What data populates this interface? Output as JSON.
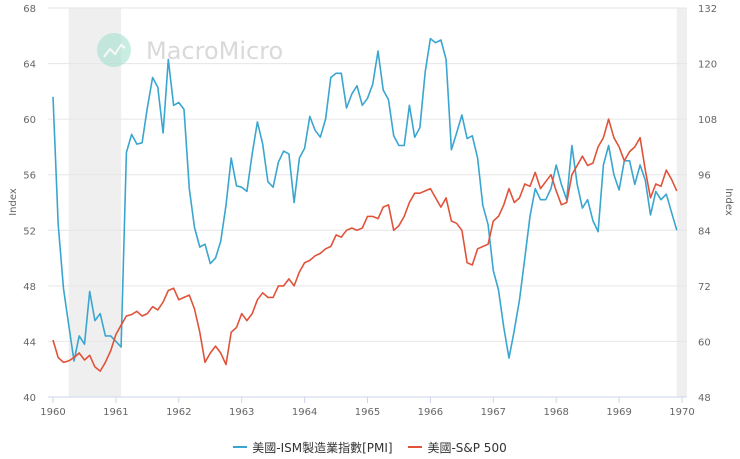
{
  "watermark": "MacroMicro",
  "chart_data": {
    "type": "line",
    "start": "1960-01",
    "frequency": "monthly",
    "x_ticks": [
      "1960",
      "1961",
      "1962",
      "1963",
      "1964",
      "1965",
      "1966",
      "1967",
      "1968",
      "1969",
      "1970"
    ],
    "y_left": {
      "label": "Index",
      "range": [
        40,
        68
      ],
      "ticks": [
        40,
        44,
        48,
        52,
        56,
        60,
        64,
        68
      ]
    },
    "y_right": {
      "label": "Index",
      "range": [
        48,
        132
      ],
      "ticks": [
        48,
        60,
        72,
        84,
        96,
        108,
        120,
        132
      ]
    },
    "grid": true,
    "legend_placement": "bottom",
    "recessions": [
      [
        "1960-04",
        "1961-02"
      ],
      [
        "1969-12",
        "1970-02"
      ]
    ],
    "series": [
      {
        "name": "美國-ISM製造業指數[PMI]",
        "axis": "left",
        "color": "#3aa6d0",
        "values": [
          61.6,
          52.4,
          47.8,
          45.2,
          42.6,
          44.4,
          43.8,
          47.6,
          45.5,
          46.0,
          44.4,
          44.4,
          44.0,
          43.6,
          57.6,
          58.9,
          58.2,
          58.3,
          60.8,
          63.0,
          62.3,
          59.0,
          64.3,
          61.0,
          61.2,
          60.7,
          55.0,
          52.2,
          50.8,
          51.0,
          49.6,
          50.0,
          51.2,
          53.8,
          57.2,
          55.2,
          55.1,
          54.8,
          57.5,
          59.8,
          58.2,
          55.5,
          55.1,
          56.9,
          57.7,
          57.5,
          54.0,
          57.2,
          57.9,
          60.2,
          59.2,
          58.7,
          60.0,
          63.0,
          63.3,
          63.3,
          60.8,
          61.8,
          62.4,
          61.0,
          61.5,
          62.5,
          64.9,
          62.1,
          61.4,
          58.8,
          58.1,
          58.1,
          61.0,
          58.7,
          59.4,
          63.4,
          65.8,
          65.5,
          65.7,
          64.3,
          57.8,
          59.0,
          60.3,
          58.6,
          58.8,
          57.2,
          53.8,
          52.4,
          49.1,
          47.7,
          45.0,
          42.8,
          44.8,
          47.0,
          50.0,
          53.0,
          55.0,
          54.2,
          54.2,
          55.0,
          56.7,
          55.3,
          54.2,
          58.1,
          55.3,
          53.6,
          54.2,
          52.7,
          51.9,
          56.7,
          58.1,
          56.0,
          54.9,
          57.0,
          57.0,
          55.3,
          56.7,
          55.6,
          53.1,
          54.8,
          54.2,
          54.6,
          53.3,
          52.0
        ]
      },
      {
        "name": "美國-S&P 500",
        "axis": "right",
        "color": "#e0533a",
        "values": [
          60.3,
          56.5,
          55.5,
          55.8,
          56.5,
          57.5,
          56.0,
          57.0,
          54.5,
          53.6,
          55.5,
          58.0,
          61.5,
          63.5,
          65.5,
          65.8,
          66.5,
          65.5,
          66.0,
          67.5,
          66.8,
          68.5,
          71.0,
          71.5,
          69.0,
          69.5,
          70.0,
          67.0,
          62.0,
          55.5,
          57.5,
          59.0,
          57.5,
          55.0,
          62.0,
          63.0,
          66.0,
          64.5,
          66.0,
          69.0,
          70.5,
          69.5,
          69.5,
          72.0,
          72.0,
          73.5,
          72.0,
          75.0,
          77.0,
          77.5,
          78.5,
          79.0,
          80.0,
          80.5,
          83.0,
          82.5,
          84.0,
          84.5,
          84.0,
          84.5,
          87.0,
          87.0,
          86.5,
          89.0,
          89.5,
          84.0,
          85.0,
          87.0,
          90.0,
          92.0,
          92.0,
          92.5,
          93.0,
          91.0,
          89.0,
          91.0,
          86.0,
          85.5,
          84.0,
          77.0,
          76.5,
          80.0,
          80.5,
          81.0,
          86.0,
          87.0,
          89.5,
          93.0,
          90.0,
          91.0,
          94.0,
          93.5,
          96.5,
          93.0,
          94.5,
          96.0,
          92.5,
          89.5,
          90.0,
          96.0,
          98.0,
          100.0,
          98.0,
          98.5,
          102.0,
          104.0,
          108.0,
          104.0,
          102.0,
          99.0,
          101.0,
          102.0,
          104.0,
          97.0,
          91.0,
          94.0,
          93.5,
          97.0,
          95.0,
          92.5
        ]
      }
    ]
  }
}
